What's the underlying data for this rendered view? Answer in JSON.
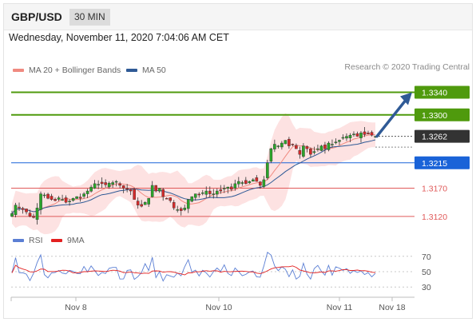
{
  "header": {
    "symbol": "GBP/USD",
    "timeframe": "30 MIN"
  },
  "datetime": "Wednesday, November 11, 2020 7:04:06 AM CET",
  "credit": "Research © 2020 Trading Central",
  "legend": [
    {
      "label": "MA 20 + Bollinger Bands",
      "color": "#f08a80"
    },
    {
      "label": "MA 50",
      "color": "#2f5a96"
    }
  ],
  "rsi_legend": [
    {
      "label": "RSI",
      "color": "#5b7fd4"
    },
    {
      "label": "9MA",
      "color": "#e32020"
    }
  ],
  "colors": {
    "resistance": "#4f9a0d",
    "pivot": "#1a63d8",
    "support": "#e05a5a",
    "last": "#333333",
    "arrow": "#2f5a96",
    "band": "#fcd3d3",
    "bullish": "#2aa52a",
    "bearish": "#d42a2a"
  },
  "chart_data": [
    {
      "type": "candlestick",
      "levels": [
        {
          "value": 1.334,
          "label": "1.3340",
          "kind": "resistance"
        },
        {
          "value": 1.33,
          "label": "1.3300",
          "kind": "resistance"
        },
        {
          "value": 1.3262,
          "label": "1.3262",
          "kind": "last"
        },
        {
          "value": 1.3215,
          "label": "1.3215",
          "kind": "pivot"
        },
        {
          "value": 1.317,
          "label": "1.3170",
          "kind": "support"
        },
        {
          "value": 1.312,
          "label": "1.3120",
          "kind": "support"
        }
      ],
      "ylim": [
        1.3107,
        1.3362
      ],
      "x_ticks": [
        "Nov 8",
        "Nov 10",
        "Nov 11",
        "Nov 18"
      ],
      "close_path": [
        1.3125,
        1.314,
        1.3135,
        1.3132,
        1.3128,
        1.312,
        1.3118,
        1.3135,
        1.316,
        1.3158,
        1.3152,
        1.315,
        1.3148,
        1.3153,
        1.315,
        1.3145,
        1.3147,
        1.3152,
        1.3155,
        1.3152,
        1.316,
        1.3165,
        1.3172,
        1.3178,
        1.3177,
        1.3178,
        1.3176,
        1.3179,
        1.318,
        1.3182,
        1.3175,
        1.317,
        1.3168,
        1.3165,
        1.315,
        1.314,
        1.3138,
        1.3145,
        1.3152,
        1.3175,
        1.3165,
        1.317,
        1.3155,
        1.3152,
        1.3148,
        1.3135,
        1.3132,
        1.313,
        1.3135,
        1.315,
        1.3155,
        1.316,
        1.3158,
        1.3162,
        1.3165,
        1.316,
        1.316,
        1.3165,
        1.3165,
        1.317,
        1.3172,
        1.3168,
        1.3178,
        1.3182,
        1.318,
        1.3178,
        1.3182,
        1.3185,
        1.3182,
        1.3175,
        1.3185,
        1.3215,
        1.324,
        1.3248,
        1.3245,
        1.325,
        1.3255,
        1.3245,
        1.3248,
        1.324,
        1.323,
        1.3245,
        1.324,
        1.323,
        1.3235,
        1.324,
        1.3245,
        1.324,
        1.325,
        1.3248,
        1.3252,
        1.3255,
        1.326,
        1.3262,
        1.3264,
        1.3266,
        1.3262,
        1.3268,
        1.3265,
        1.3266,
        1.3264,
        1.3262
      ],
      "projection": {
        "from": 1.3262,
        "to": 1.334
      }
    },
    {
      "type": "line",
      "title": "RSI",
      "y_ticks": [
        "70",
        "50",
        "30"
      ],
      "ylim": [
        25,
        75
      ]
    }
  ]
}
